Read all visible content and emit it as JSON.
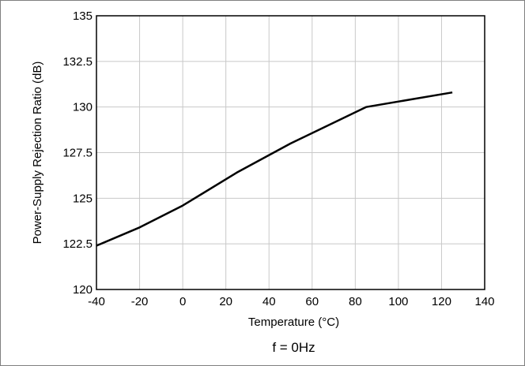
{
  "chart_data": {
    "type": "line",
    "xlabel": "Temperature (°C)",
    "ylabel": "Power-Supply Rejection Ratio (dB)",
    "xlim": [
      -40,
      140
    ],
    "ylim": [
      120,
      135
    ],
    "x_ticks": [
      -40,
      -20,
      0,
      20,
      40,
      60,
      80,
      100,
      120,
      140
    ],
    "y_ticks": [
      120,
      122.5,
      125,
      127.5,
      130,
      132.5,
      135
    ],
    "x_tick_labels": [
      "-40",
      "-20",
      "0",
      "20",
      "40",
      "60",
      "80",
      "100",
      "120",
      "140"
    ],
    "y_tick_labels": [
      "120",
      "122.5",
      "125",
      "127.5",
      "130",
      "132.5",
      "135"
    ],
    "grid": true,
    "series": [
      {
        "x": [
          -40,
          -20,
          0,
          25,
          50,
          85,
          125
        ],
        "y": [
          122.4,
          123.4,
          124.6,
          126.4,
          128,
          130,
          130.8
        ],
        "color": "#000000"
      }
    ],
    "caption": "f = 0Hz"
  }
}
